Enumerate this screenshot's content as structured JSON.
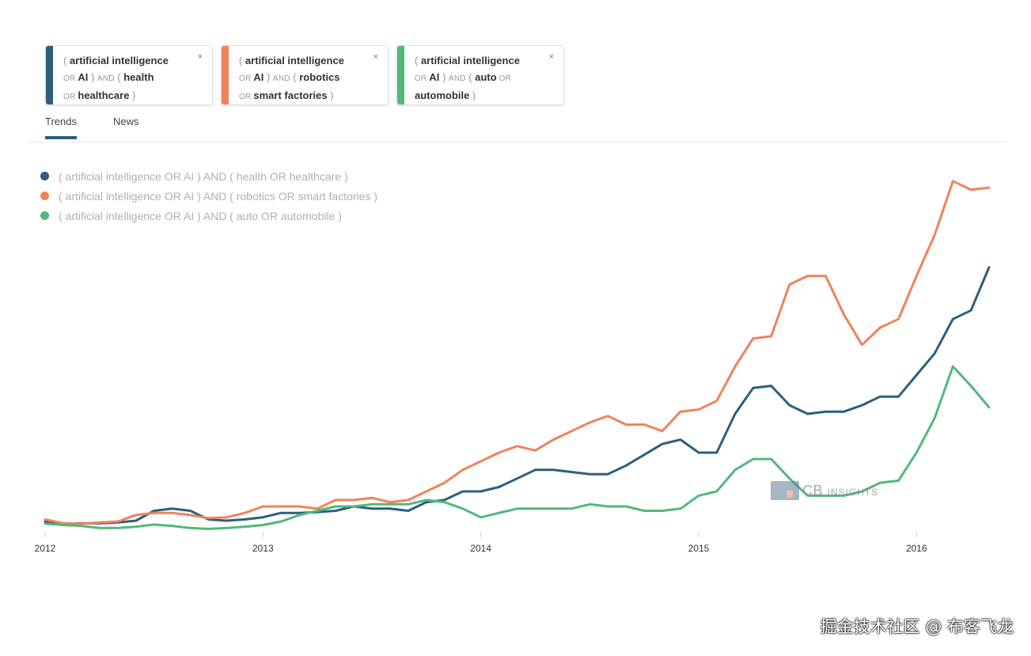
{
  "chips": [
    {
      "parts": [
        [
          "p",
          "( "
        ],
        [
          "b",
          "artificial intelligence"
        ],
        [
          "br",
          ""
        ],
        [
          "o",
          "OR "
        ],
        [
          "b",
          "AI"
        ],
        [
          "p",
          "  ) "
        ],
        [
          "o",
          "AND"
        ],
        [
          "p",
          " ( "
        ],
        [
          "b",
          "health"
        ],
        [
          "br",
          ""
        ],
        [
          "o",
          "OR "
        ],
        [
          "b",
          "healthcare"
        ],
        [
          "p",
          "  )"
        ]
      ],
      "color": "#2b5f7d",
      "close": "×"
    },
    {
      "parts": [
        [
          "p",
          "( "
        ],
        [
          "b",
          "artificial intelligence"
        ],
        [
          "br",
          ""
        ],
        [
          "o",
          "OR "
        ],
        [
          "b",
          "AI"
        ],
        [
          "p",
          "  ) "
        ],
        [
          "o",
          "AND"
        ],
        [
          "p",
          " ( "
        ],
        [
          "b",
          "robotics"
        ],
        [
          "br",
          ""
        ],
        [
          "o",
          "OR "
        ],
        [
          "b",
          "smart factories"
        ],
        [
          "p",
          "  )"
        ]
      ],
      "color": "#f0825c",
      "close": "×"
    },
    {
      "parts": [
        [
          "p",
          "( "
        ],
        [
          "b",
          "artificial intelligence"
        ],
        [
          "br",
          ""
        ],
        [
          "o",
          "OR "
        ],
        [
          "b",
          "AI"
        ],
        [
          "p",
          "  ) "
        ],
        [
          "o",
          "AND"
        ],
        [
          "p",
          " ( "
        ],
        [
          "b",
          "auto"
        ],
        [
          "o",
          " OR"
        ],
        [
          "br",
          ""
        ],
        [
          "b",
          "automobile"
        ],
        [
          "p",
          "  )"
        ]
      ],
      "color": "#52b87a",
      "close": "×"
    }
  ],
  "tabs": {
    "trends": "Trends",
    "news": "News"
  },
  "watermark": {
    "brand": "CB",
    "brand_small": "INSIGHTS",
    "footer": "掘金技术社区 @ 布客飞龙"
  },
  "chart_data": {
    "type": "line",
    "x": [
      2012.0,
      2012.083,
      2012.167,
      2012.25,
      2012.333,
      2012.417,
      2012.5,
      2012.583,
      2012.667,
      2012.75,
      2012.833,
      2012.917,
      2013.0,
      2013.083,
      2013.167,
      2013.25,
      2013.333,
      2013.417,
      2013.5,
      2013.583,
      2013.667,
      2013.75,
      2013.833,
      2013.917,
      2014.0,
      2014.083,
      2014.167,
      2014.25,
      2014.333,
      2014.417,
      2014.5,
      2014.583,
      2014.667,
      2014.75,
      2014.833,
      2014.917,
      2015.0,
      2015.083,
      2015.167,
      2015.25,
      2015.333,
      2015.417,
      2015.5,
      2015.583,
      2015.667,
      2015.75,
      2015.833,
      2015.917,
      2016.0,
      2016.083,
      2016.167,
      2016.25,
      2016.333
    ],
    "series": [
      {
        "name": "( artificial intelligence OR AI ) AND ( health OR healthcare )",
        "color": "#2b5f7d",
        "values": [
          1.0,
          0.5,
          0.6,
          0.6,
          0.8,
          1.2,
          3.5,
          4.0,
          3.5,
          1.5,
          1.2,
          1.5,
          2.0,
          3.0,
          3.0,
          3.2,
          3.5,
          4.5,
          4.0,
          4.0,
          3.5,
          5.5,
          6.0,
          8.0,
          8.0,
          9.0,
          11.0,
          13.0,
          13.0,
          12.5,
          12.0,
          12.0,
          14.0,
          16.5,
          19.0,
          20.0,
          17.0,
          17.0,
          26.0,
          32.0,
          32.5,
          28.0,
          26.0,
          26.5,
          26.5,
          28.0,
          30.0,
          30.0,
          35.0,
          40.0,
          48.0,
          50.0,
          60.0
        ]
      },
      {
        "name": "( artificial intelligence OR AI ) AND ( robotics OR smart factories )",
        "color": "#f0825c",
        "values": [
          1.5,
          0.6,
          0.5,
          0.8,
          1.0,
          2.5,
          3.0,
          3.0,
          2.5,
          1.8,
          2.0,
          3.0,
          4.5,
          4.5,
          4.5,
          4.0,
          6.0,
          6.0,
          6.5,
          5.5,
          6.0,
          8.0,
          10.0,
          13.0,
          15.0,
          17.0,
          18.5,
          17.5,
          20.0,
          22.0,
          24.0,
          25.5,
          23.5,
          23.5,
          22.0,
          26.5,
          27.0,
          29.0,
          37.0,
          43.5,
          44.0,
          56.0,
          58.0,
          58.0,
          49.0,
          42.0,
          46.0,
          48.0,
          58.0,
          67.5,
          80.0,
          78.0,
          78.5
        ]
      },
      {
        "name": "( artificial intelligence OR AI ) AND ( auto OR automobile )",
        "color": "#52b87a",
        "values": [
          0.5,
          0.2,
          0.0,
          -0.5,
          -0.5,
          -0.2,
          0.3,
          0.0,
          -0.5,
          -0.7,
          -0.5,
          -0.2,
          0.2,
          1.0,
          2.5,
          3.5,
          4.5,
          4.5,
          5.0,
          5.0,
          5.0,
          6.0,
          5.5,
          4.0,
          2.0,
          3.0,
          4.0,
          4.0,
          4.0,
          4.0,
          5.0,
          4.5,
          4.5,
          3.5,
          3.5,
          4.0,
          7.0,
          8.0,
          13.0,
          15.5,
          15.5,
          11.0,
          7.0,
          7.0,
          7.0,
          8.0,
          10.0,
          10.5,
          17.0,
          25.0,
          37.0,
          32.5,
          27.5
        ]
      }
    ],
    "xticks": [
      2012,
      2013,
      2014,
      2015,
      2016
    ],
    "xtick_labels": [
      "2012",
      "2013",
      "2014",
      "2015",
      "2016"
    ],
    "xlim": [
      2012,
      2016.333
    ],
    "ylim": [
      -1,
      82
    ],
    "legend_position": "top-left",
    "grid": false,
    "title": "",
    "xlabel": "",
    "ylabel": ""
  }
}
